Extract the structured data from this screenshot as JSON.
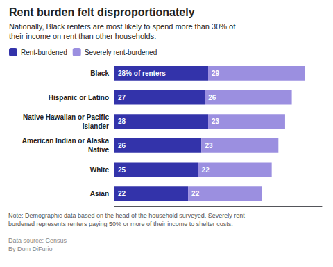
{
  "chart_data": {
    "type": "bar",
    "orientation": "horizontal",
    "stacked": true,
    "title": "Rent burden felt disproportionately",
    "subtitle": "Nationally, Black renters are most likely to spend more than 30% of\ntheir income on rent than other households.",
    "categories": [
      "Black",
      "Hispanic or Latino",
      "Native Hawaiian or Pacific\nIslander",
      "American Indian or Alaska\nNative",
      "White",
      "Asian"
    ],
    "series": [
      {
        "name": "Rent-burdened",
        "color": "#3333aa",
        "values": [
          28,
          27,
          28,
          26,
          25,
          22
        ],
        "value_labels": [
          "28% of renters",
          "27",
          "28",
          "26",
          "25",
          "22"
        ]
      },
      {
        "name": "Severely rent-burdened",
        "color": "#9b8fe0",
        "values": [
          29,
          26,
          23,
          23,
          22,
          22
        ]
      }
    ],
    "xlim": [
      0,
      62
    ],
    "tick_labels": "y",
    "data_labels": true,
    "legend": "upper left",
    "grid": false,
    "annotations": [
      "Note: Demographic data based on the head of the household surveyed. Severely rent-\nburdened represents renters paying 50% or more of their income to shelter costs.",
      "Data source: Census\nBy Dom DiFurio"
    ]
  }
}
